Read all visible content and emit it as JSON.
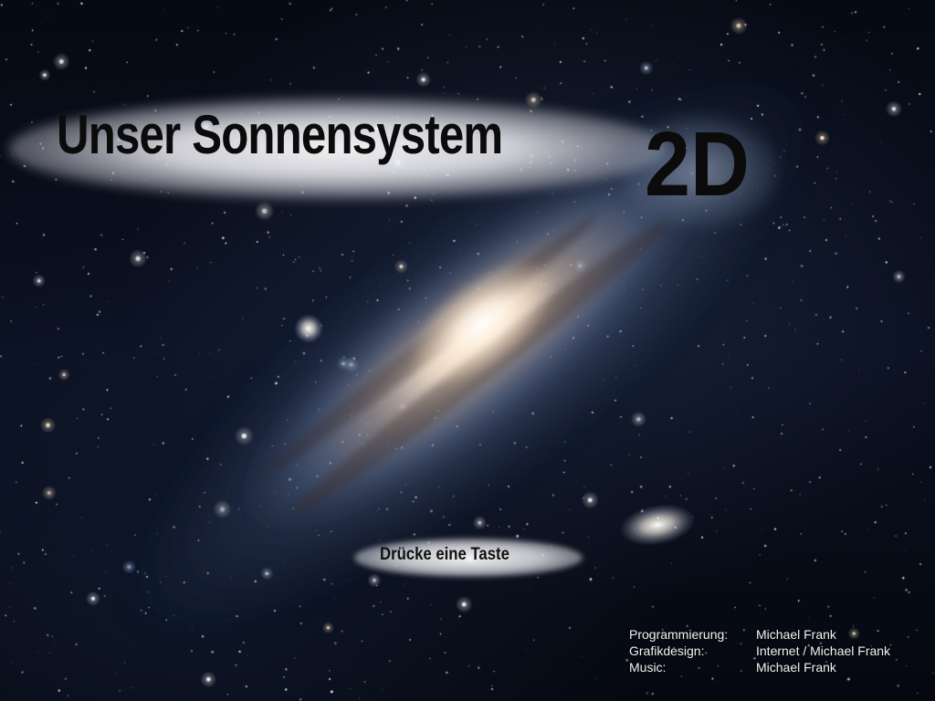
{
  "screen": {
    "title_main": "Unser Sonnensystem",
    "title_suffix": "2D",
    "prompt": "Drücke eine Taste"
  },
  "credits": [
    {
      "label": "Programmierung:",
      "value": "Michael Frank"
    },
    {
      "label": "Grafikdesign:",
      "value": "Internet / Michael Frank"
    },
    {
      "label": "Music:",
      "value": "Michael Frank"
    }
  ]
}
